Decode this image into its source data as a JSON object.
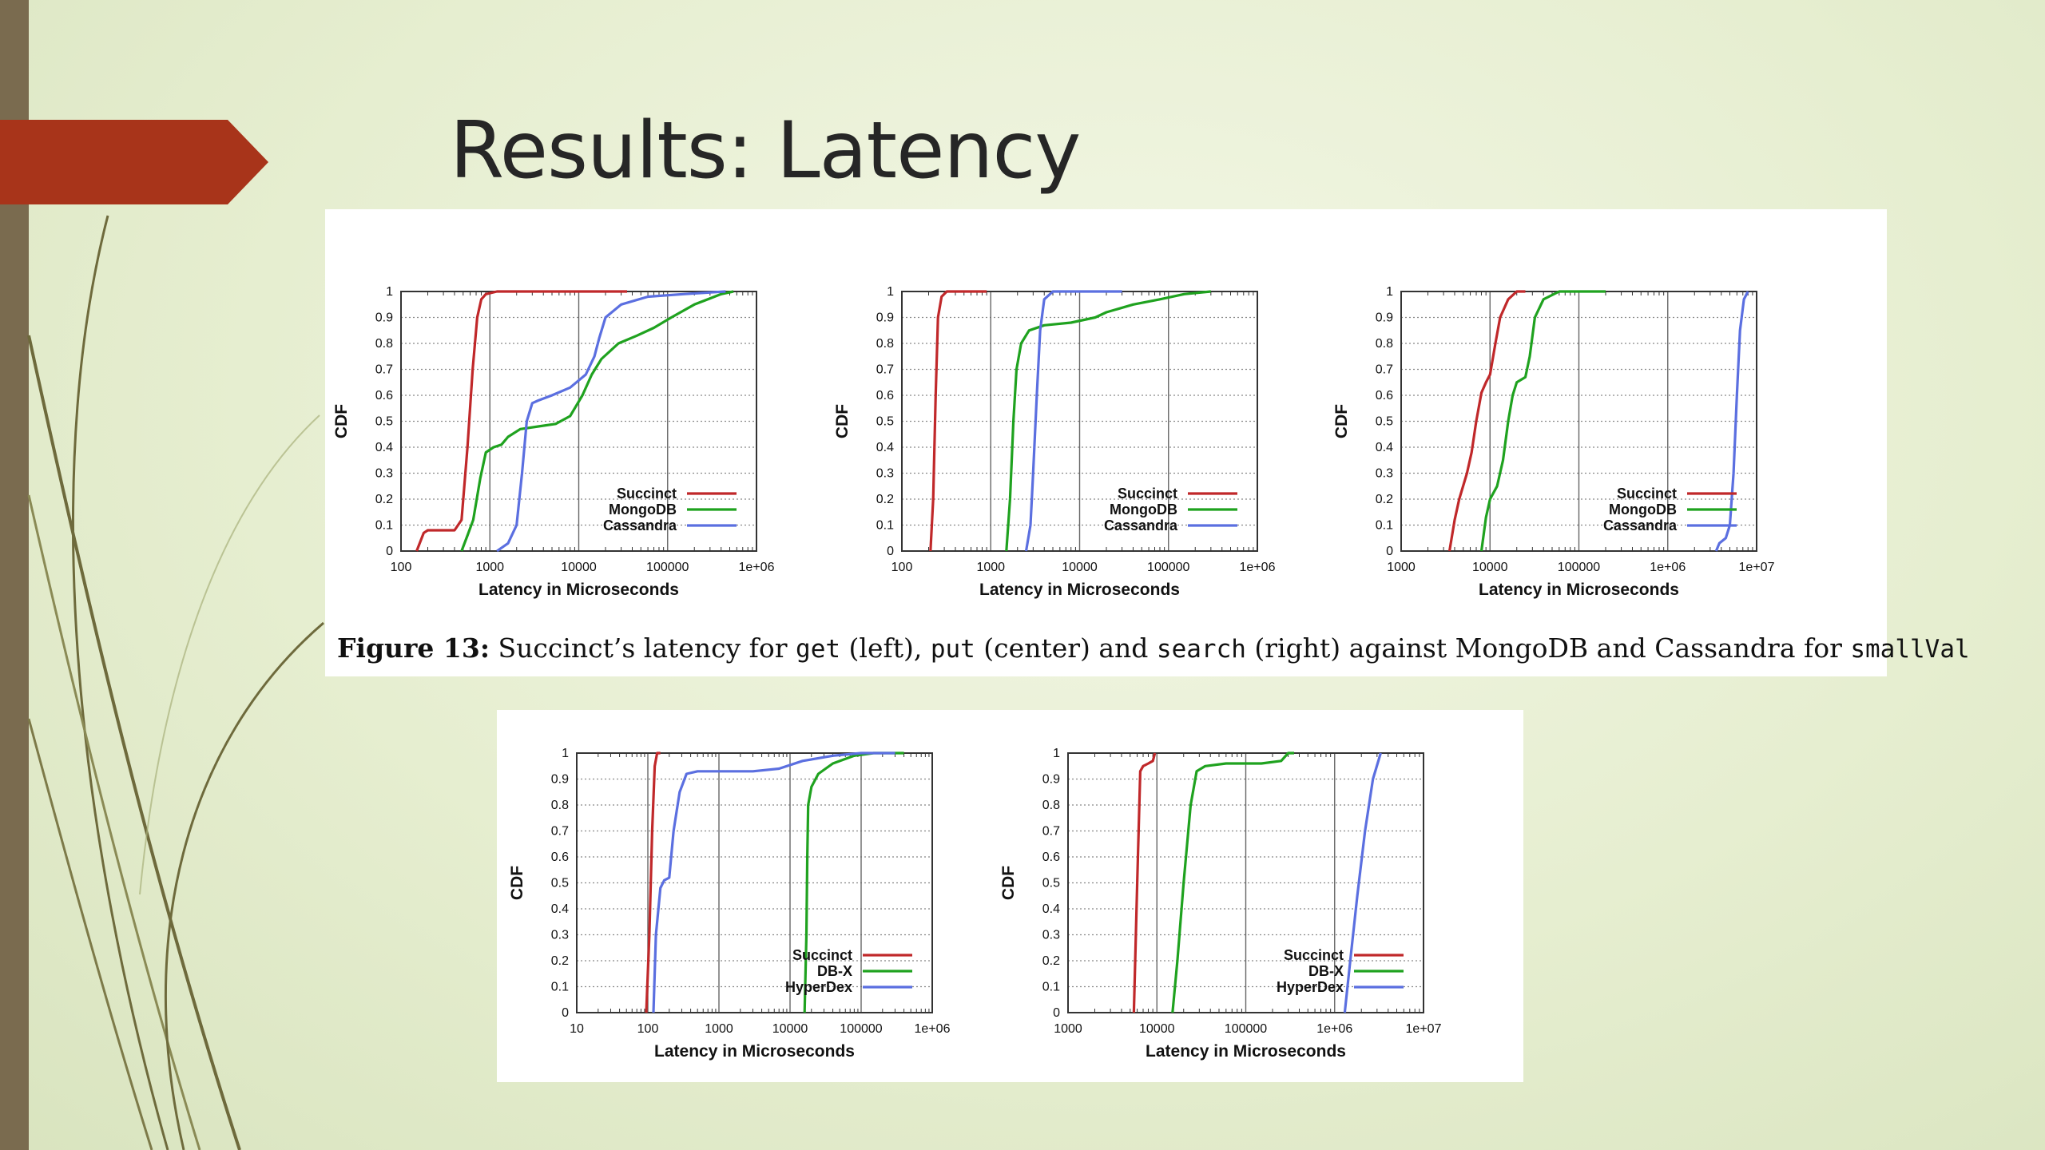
{
  "slide": {
    "title": "Results: Latency"
  },
  "caption": {
    "label": "Figure 13:",
    "parts": [
      " Succinct’s latency for ",
      "get",
      " (left), ",
      "put",
      " (center) and ",
      "search",
      " (right) against MongoDB and Cassandra for ",
      "smallVal"
    ]
  },
  "colors": {
    "Succinct": "#c0282a",
    "MongoDB": "#1fa21f",
    "Cassandra": "#5b6fe0",
    "DB-X": "#1fa21f",
    "HyperDex": "#5b6fe0",
    "accent": "#a8341a",
    "sidebar": "#7a6b4f"
  },
  "chart_data": [
    {
      "type": "line",
      "scale": "log",
      "xlabel": "Latency in Microseconds",
      "ylabel": "CDF",
      "xlim": [
        100,
        1000000
      ],
      "ylim": [
        0,
        1
      ],
      "xticks": [
        100,
        1000,
        10000,
        100000,
        1000000
      ],
      "xticklabels": [
        "100",
        "1000",
        "10000",
        "100000",
        "1e+06"
      ],
      "yticks": [
        0,
        0.1,
        0.2,
        0.3,
        0.4,
        0.5,
        0.6,
        0.7,
        0.8,
        0.9,
        1
      ],
      "yticklabels": [
        "0",
        "0.1",
        "0.2",
        "0.3",
        "0.4",
        "0.5",
        "0.6",
        "0.7",
        "0.8",
        "0.9",
        "1"
      ],
      "legend": "bottom-right",
      "series": [
        {
          "name": "Succinct",
          "points": [
            [
              150,
              0
            ],
            [
              180,
              0.07
            ],
            [
              200,
              0.08
            ],
            [
              400,
              0.08
            ],
            [
              480,
              0.12
            ],
            [
              560,
              0.4
            ],
            [
              640,
              0.7
            ],
            [
              720,
              0.9
            ],
            [
              800,
              0.97
            ],
            [
              900,
              0.99
            ],
            [
              1200,
              1
            ],
            [
              35000,
              1
            ]
          ]
        },
        {
          "name": "MongoDB",
          "points": [
            [
              480,
              0
            ],
            [
              560,
              0.06
            ],
            [
              650,
              0.12
            ],
            [
              780,
              0.28
            ],
            [
              900,
              0.38
            ],
            [
              1100,
              0.4
            ],
            [
              1350,
              0.41
            ],
            [
              1600,
              0.44
            ],
            [
              2200,
              0.47
            ],
            [
              3500,
              0.48
            ],
            [
              5500,
              0.49
            ],
            [
              8000,
              0.52
            ],
            [
              11000,
              0.6
            ],
            [
              14000,
              0.68
            ],
            [
              18000,
              0.74
            ],
            [
              28000,
              0.8
            ],
            [
              45000,
              0.83
            ],
            [
              70000,
              0.86
            ],
            [
              110000,
              0.9
            ],
            [
              200000,
              0.95
            ],
            [
              400000,
              0.99
            ],
            [
              550000,
              1
            ]
          ]
        },
        {
          "name": "Cassandra",
          "points": [
            [
              1200,
              0
            ],
            [
              1600,
              0.03
            ],
            [
              2000,
              0.1
            ],
            [
              2300,
              0.3
            ],
            [
              2600,
              0.5
            ],
            [
              3000,
              0.57
            ],
            [
              3500,
              0.58
            ],
            [
              5000,
              0.6
            ],
            [
              8000,
              0.63
            ],
            [
              12000,
              0.68
            ],
            [
              15000,
              0.75
            ],
            [
              17000,
              0.82
            ],
            [
              20000,
              0.9
            ],
            [
              30000,
              0.95
            ],
            [
              60000,
              0.98
            ],
            [
              150000,
              0.99
            ],
            [
              450000,
              1
            ]
          ]
        }
      ]
    },
    {
      "type": "line",
      "scale": "log",
      "xlabel": "Latency in Microseconds",
      "ylabel": "CDF",
      "xlim": [
        100,
        1000000
      ],
      "ylim": [
        0,
        1
      ],
      "xticks": [
        100,
        1000,
        10000,
        100000,
        1000000
      ],
      "xticklabels": [
        "100",
        "1000",
        "10000",
        "100000",
        "1e+06"
      ],
      "yticks": [
        0,
        0.1,
        0.2,
        0.3,
        0.4,
        0.5,
        0.6,
        0.7,
        0.8,
        0.9,
        1
      ],
      "yticklabels": [
        "0",
        "0.1",
        "0.2",
        "0.3",
        "0.4",
        "0.5",
        "0.6",
        "0.7",
        "0.8",
        "0.9",
        "1"
      ],
      "legend": "bottom-right",
      "series": [
        {
          "name": "Succinct",
          "points": [
            [
              210,
              0
            ],
            [
              225,
              0.2
            ],
            [
              240,
              0.6
            ],
            [
              255,
              0.9
            ],
            [
              280,
              0.98
            ],
            [
              320,
              1
            ],
            [
              900,
              1
            ]
          ]
        },
        {
          "name": "MongoDB",
          "points": [
            [
              1500,
              0
            ],
            [
              1650,
              0.2
            ],
            [
              1800,
              0.5
            ],
            [
              1950,
              0.7
            ],
            [
              2200,
              0.8
            ],
            [
              2700,
              0.85
            ],
            [
              4000,
              0.87
            ],
            [
              8000,
              0.88
            ],
            [
              15000,
              0.9
            ],
            [
              20000,
              0.92
            ],
            [
              40000,
              0.95
            ],
            [
              80000,
              0.97
            ],
            [
              150000,
              0.99
            ],
            [
              300000,
              1
            ]
          ]
        },
        {
          "name": "Cassandra",
          "points": [
            [
              2500,
              0
            ],
            [
              2800,
              0.1
            ],
            [
              3000,
              0.3
            ],
            [
              3300,
              0.6
            ],
            [
              3600,
              0.85
            ],
            [
              4000,
              0.97
            ],
            [
              5000,
              1
            ],
            [
              30000,
              1
            ]
          ]
        }
      ]
    },
    {
      "type": "line",
      "scale": "log",
      "xlabel": "Latency in Microseconds",
      "ylabel": "CDF",
      "xlim": [
        1000,
        10000000
      ],
      "ylim": [
        0,
        1
      ],
      "xticks": [
        1000,
        10000,
        100000,
        1000000,
        10000000
      ],
      "xticklabels": [
        "1000",
        "10000",
        "100000",
        "1e+06",
        "1e+07"
      ],
      "yticks": [
        0,
        0.1,
        0.2,
        0.3,
        0.4,
        0.5,
        0.6,
        0.7,
        0.8,
        0.9,
        1
      ],
      "yticklabels": [
        "0",
        "0.1",
        "0.2",
        "0.3",
        "0.4",
        "0.5",
        "0.6",
        "0.7",
        "0.8",
        "0.9",
        "1"
      ],
      "legend": "bottom-right",
      "series": [
        {
          "name": "Succinct",
          "points": [
            [
              3500,
              0
            ],
            [
              4000,
              0.12
            ],
            [
              4500,
              0.2
            ],
            [
              5500,
              0.3
            ],
            [
              6200,
              0.38
            ],
            [
              7000,
              0.5
            ],
            [
              8000,
              0.61
            ],
            [
              9000,
              0.65
            ],
            [
              10000,
              0.68
            ],
            [
              11500,
              0.8
            ],
            [
              13000,
              0.9
            ],
            [
              16000,
              0.97
            ],
            [
              20000,
              1
            ],
            [
              25000,
              1
            ]
          ]
        },
        {
          "name": "MongoDB",
          "points": [
            [
              8000,
              0
            ],
            [
              9000,
              0.13
            ],
            [
              10000,
              0.2
            ],
            [
              12000,
              0.25
            ],
            [
              14000,
              0.35
            ],
            [
              16000,
              0.5
            ],
            [
              18000,
              0.6
            ],
            [
              20000,
              0.65
            ],
            [
              25000,
              0.67
            ],
            [
              28000,
              0.75
            ],
            [
              32000,
              0.9
            ],
            [
              40000,
              0.97
            ],
            [
              60000,
              1
            ],
            [
              200000,
              1
            ]
          ]
        },
        {
          "name": "Cassandra",
          "points": [
            [
              3500000,
              0
            ],
            [
              3800000,
              0.03
            ],
            [
              4500000,
              0.05
            ],
            [
              5000000,
              0.1
            ],
            [
              5500000,
              0.3
            ],
            [
              6000000,
              0.6
            ],
            [
              6500000,
              0.85
            ],
            [
              7200000,
              0.97
            ],
            [
              8000000,
              1
            ]
          ]
        }
      ]
    },
    {
      "type": "line",
      "scale": "log",
      "xlabel": "Latency in Microseconds",
      "ylabel": "CDF",
      "xlim": [
        10,
        1000000
      ],
      "ylim": [
        0,
        1
      ],
      "xticks": [
        10,
        100,
        1000,
        10000,
        100000,
        1000000
      ],
      "xticklabels": [
        "10",
        "100",
        "1000",
        "10000",
        "100000",
        "1e+06"
      ],
      "yticks": [
        0,
        0.1,
        0.2,
        0.3,
        0.4,
        0.5,
        0.6,
        0.7,
        0.8,
        0.9,
        1
      ],
      "yticklabels": [
        "0",
        "0.1",
        "0.2",
        "0.3",
        "0.4",
        "0.5",
        "0.6",
        "0.7",
        "0.8",
        "0.9",
        "1"
      ],
      "legend": "bottom-right",
      "series": [
        {
          "name": "Succinct",
          "points": [
            [
              95,
              0
            ],
            [
              105,
              0.3
            ],
            [
              115,
              0.7
            ],
            [
              125,
              0.95
            ],
            [
              135,
              1
            ],
            [
              150,
              1
            ]
          ]
        },
        {
          "name": "DB-X",
          "points": [
            [
              16000,
              0
            ],
            [
              17000,
              0.3
            ],
            [
              17500,
              0.6
            ],
            [
              18000,
              0.8
            ],
            [
              20000,
              0.87
            ],
            [
              25000,
              0.92
            ],
            [
              40000,
              0.96
            ],
            [
              80000,
              0.99
            ],
            [
              150000,
              1
            ],
            [
              400000,
              1
            ]
          ]
        },
        {
          "name": "HyperDex",
          "points": [
            [
              120,
              0
            ],
            [
              130,
              0.3
            ],
            [
              150,
              0.48
            ],
            [
              170,
              0.51
            ],
            [
              200,
              0.52
            ],
            [
              230,
              0.7
            ],
            [
              280,
              0.85
            ],
            [
              350,
              0.92
            ],
            [
              500,
              0.93
            ],
            [
              3000,
              0.93
            ],
            [
              7000,
              0.94
            ],
            [
              15000,
              0.97
            ],
            [
              40000,
              0.99
            ],
            [
              100000,
              1
            ],
            [
              300000,
              1
            ]
          ]
        }
      ]
    },
    {
      "type": "line",
      "scale": "log",
      "xlabel": "Latency in Microseconds",
      "ylabel": "CDF",
      "xlim": [
        1000,
        10000000
      ],
      "ylim": [
        0,
        1
      ],
      "xticks": [
        1000,
        10000,
        100000,
        1000000,
        10000000
      ],
      "xticklabels": [
        "1000",
        "10000",
        "100000",
        "1e+06",
        "1e+07"
      ],
      "yticks": [
        0,
        0.1,
        0.2,
        0.3,
        0.4,
        0.5,
        0.6,
        0.7,
        0.8,
        0.9,
        1
      ],
      "yticklabels": [
        "0",
        "0.1",
        "0.2",
        "0.3",
        "0.4",
        "0.5",
        "0.6",
        "0.7",
        "0.8",
        "0.9",
        "1"
      ],
      "legend": "bottom-right",
      "series": [
        {
          "name": "Succinct",
          "points": [
            [
              5500,
              0
            ],
            [
              6000,
              0.5
            ],
            [
              6500,
              0.93
            ],
            [
              7000,
              0.95
            ],
            [
              8000,
              0.96
            ],
            [
              9000,
              0.97
            ],
            [
              9500,
              1
            ]
          ]
        },
        {
          "name": "DB-X",
          "points": [
            [
              15000,
              0
            ],
            [
              17000,
              0.2
            ],
            [
              20000,
              0.5
            ],
            [
              24000,
              0.8
            ],
            [
              28000,
              0.93
            ],
            [
              35000,
              0.95
            ],
            [
              60000,
              0.96
            ],
            [
              150000,
              0.96
            ],
            [
              250000,
              0.97
            ],
            [
              300000,
              1
            ],
            [
              350000,
              1
            ]
          ]
        },
        {
          "name": "HyperDex",
          "points": [
            [
              1300000,
              0
            ],
            [
              1500000,
              0.2
            ],
            [
              1800000,
              0.45
            ],
            [
              2200000,
              0.7
            ],
            [
              2700000,
              0.9
            ],
            [
              3300000,
              1
            ]
          ]
        }
      ]
    }
  ]
}
